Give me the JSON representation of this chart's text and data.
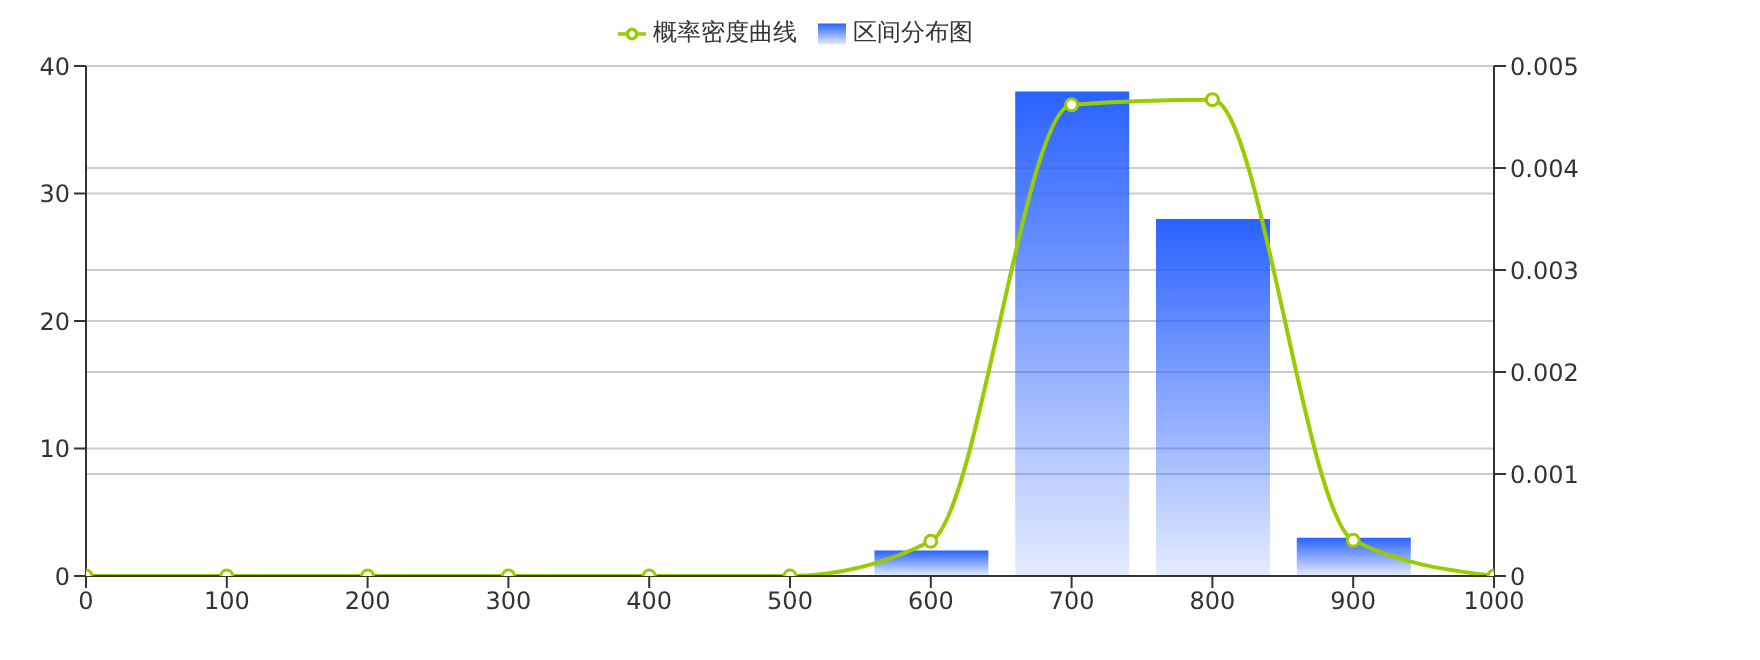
{
  "chart_data": {
    "type": "bar",
    "series": [
      {
        "name": "概率密度曲线",
        "type": "line",
        "axis": "y2",
        "color": "#99cc00",
        "marker": "circle",
        "x": [
          0,
          100,
          200,
          300,
          400,
          500,
          600,
          700,
          800,
          900,
          1000
        ],
        "values": [
          0,
          0,
          0,
          0,
          0,
          0,
          0.00034,
          0.00462,
          0.00467,
          0.00035,
          0
        ]
      },
      {
        "name": "区间分布图",
        "color": "#2962ff",
        "x": [
          600,
          700,
          800,
          900
        ],
        "values": [
          2,
          38,
          28,
          3
        ]
      }
    ],
    "xlim": [
      0,
      1000
    ],
    "xticks": [
      0,
      100,
      200,
      300,
      400,
      500,
      600,
      700,
      800,
      900,
      1000
    ],
    "ylim": [
      0,
      40
    ],
    "yticks": [
      0,
      10,
      20,
      30,
      40
    ],
    "y2lim": [
      0,
      0.005
    ],
    "y2ticks": [
      0,
      0.001,
      0.002,
      0.003,
      0.004,
      0.005
    ],
    "grid": true,
    "legend": "top"
  }
}
